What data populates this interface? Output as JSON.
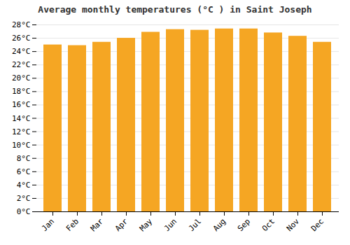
{
  "chart_data": {
    "type": "bar",
    "title": "Average monthly temperatures (°C ) in Saint Joseph",
    "categories": [
      "Jan",
      "Feb",
      "Mar",
      "Apr",
      "May",
      "Jun",
      "Jul",
      "Aug",
      "Sep",
      "Oct",
      "Nov",
      "Dec"
    ],
    "values": [
      25.0,
      24.9,
      25.4,
      26.0,
      26.9,
      27.3,
      27.2,
      27.4,
      27.4,
      26.8,
      26.3,
      25.4
    ],
    "color": "#F5A623",
    "ylim": [
      0,
      28
    ],
    "yticks": [
      {
        "value": 0,
        "label": "0°C"
      },
      {
        "value": 2,
        "label": "2°C"
      },
      {
        "value": 4,
        "label": "4°C"
      },
      {
        "value": 6,
        "label": "6°C"
      },
      {
        "value": 8,
        "label": "8°C"
      },
      {
        "value": 10,
        "label": "10°C"
      },
      {
        "value": 12,
        "label": "12°C"
      },
      {
        "value": 14,
        "label": "14°C"
      },
      {
        "value": 16,
        "label": "16°C"
      },
      {
        "value": 18,
        "label": "18°C"
      },
      {
        "value": 20,
        "label": "20°C"
      },
      {
        "value": 22,
        "label": "22°C"
      },
      {
        "value": 24,
        "label": "24°C"
      },
      {
        "value": 26,
        "label": "26°C"
      },
      {
        "value": 28,
        "label": "28°C"
      }
    ],
    "grid": true
  }
}
